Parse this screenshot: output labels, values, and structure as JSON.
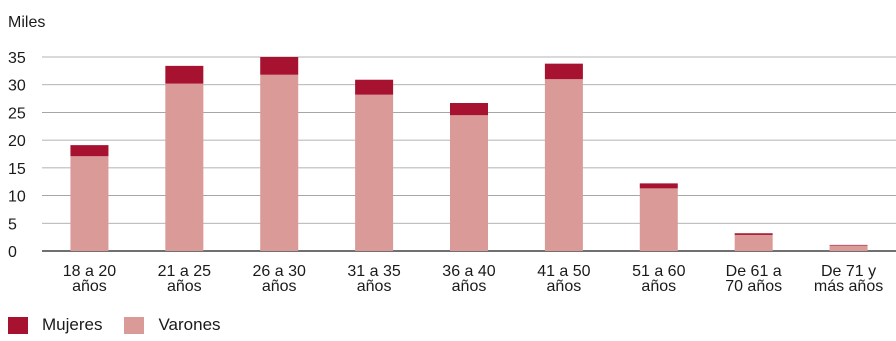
{
  "chart_data": {
    "type": "bar",
    "stacked": true,
    "ylabel": "Miles",
    "ylim": [
      0,
      35
    ],
    "yticks": [
      0,
      5,
      10,
      15,
      20,
      25,
      30,
      35
    ],
    "grid": true,
    "legend_position": "bottom-left",
    "categories": [
      [
        "18 a 20",
        "años"
      ],
      [
        "21 a 25",
        "años"
      ],
      [
        "26 a 30",
        "años"
      ],
      [
        "31 a 35",
        "años"
      ],
      [
        "36 a 40",
        "años"
      ],
      [
        "41 a 50",
        "años"
      ],
      [
        "51 a 60",
        "años"
      ],
      [
        "De 61 a",
        "70 años"
      ],
      [
        "De 71 y",
        "más años"
      ]
    ],
    "series": [
      {
        "name": "Varones",
        "color": "#d99a98",
        "values": [
          17.1,
          30.2,
          31.8,
          28.2,
          24.5,
          31.0,
          11.3,
          2.9,
          1.0
        ]
      },
      {
        "name": "Mujeres",
        "color": "#a6122f",
        "values": [
          2.0,
          3.2,
          3.2,
          2.7,
          2.2,
          2.8,
          0.9,
          0.3,
          0.1
        ]
      }
    ]
  }
}
